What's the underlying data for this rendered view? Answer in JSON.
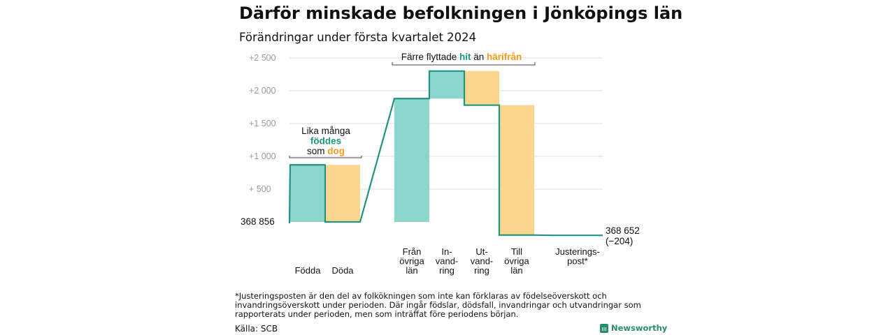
{
  "title": "Därför minskade befolkningen i Jönköpings län",
  "subtitle": "Förändringar under första kvartalet 2024",
  "footnote": "*Justeringsposten är den del av folkökningen som inte kan förklaras av födelseöverskott och invandringsöverskott under perioden. Där ingår födslar, dödsfall, invandringar och utvandringar som rapporterats under perioden, men som inträffat före periodens början.",
  "source": "Källa: SCB",
  "brand": "Newsworthy",
  "colors": {
    "teal": "#8dd6cd",
    "orange": "#fad68e",
    "line": "#1f9580",
    "tealText": "#1f9580",
    "orangeText": "#f29b1d",
    "grid": "#dddddd"
  },
  "chart_data": {
    "type": "bar",
    "subtype": "waterfall",
    "base_label": "368  856",
    "end_label_lines": [
      "368 652",
      "(−204)"
    ],
    "y_ticks": [
      "+  500",
      "+1  000",
      "+1  500",
      "+2  000",
      "+2  500"
    ],
    "y_tick_values": [
      500,
      1000,
      1500,
      2000,
      2500
    ],
    "ylim": [
      0,
      2500
    ],
    "grid": true,
    "categories": [
      {
        "lines": [
          "Födda"
        ],
        "change": 870,
        "color": "teal"
      },
      {
        "lines": [
          "Döda"
        ],
        "change": -870,
        "color": "orange"
      },
      {
        "lines": [
          "Från",
          "övriga",
          "län"
        ],
        "change": 1880,
        "color": "teal"
      },
      {
        "lines": [
          "In-",
          "vand-",
          "ring"
        ],
        "change": 420,
        "color": "teal"
      },
      {
        "lines": [
          "Ut-",
          "vand-",
          "ring"
        ],
        "change": -520,
        "color": "orange"
      },
      {
        "lines": [
          "Till",
          "övriga",
          "län"
        ],
        "change": -1980,
        "color": "orange"
      },
      {
        "lines": [
          "Justerings-",
          "post*"
        ],
        "change": -4,
        "color": "teal"
      }
    ],
    "annotations": [
      {
        "id": "births",
        "parts": [
          [
            {
              "text": "Lika många",
              "color": "plain"
            }
          ],
          [
            {
              "text": "föddes",
              "color": "teal"
            }
          ],
          [
            {
              "text": "som ",
              "color": "plain"
            },
            {
              "text": "dog",
              "color": "orange"
            }
          ]
        ]
      },
      {
        "id": "moves",
        "parts": [
          [
            {
              "text": "Färre flyttade ",
              "color": "plain"
            },
            {
              "text": "hit",
              "color": "teal"
            },
            {
              "text": "  än ",
              "color": "plain"
            },
            {
              "text": "härifrån",
              "color": "orange"
            }
          ]
        ]
      }
    ]
  }
}
